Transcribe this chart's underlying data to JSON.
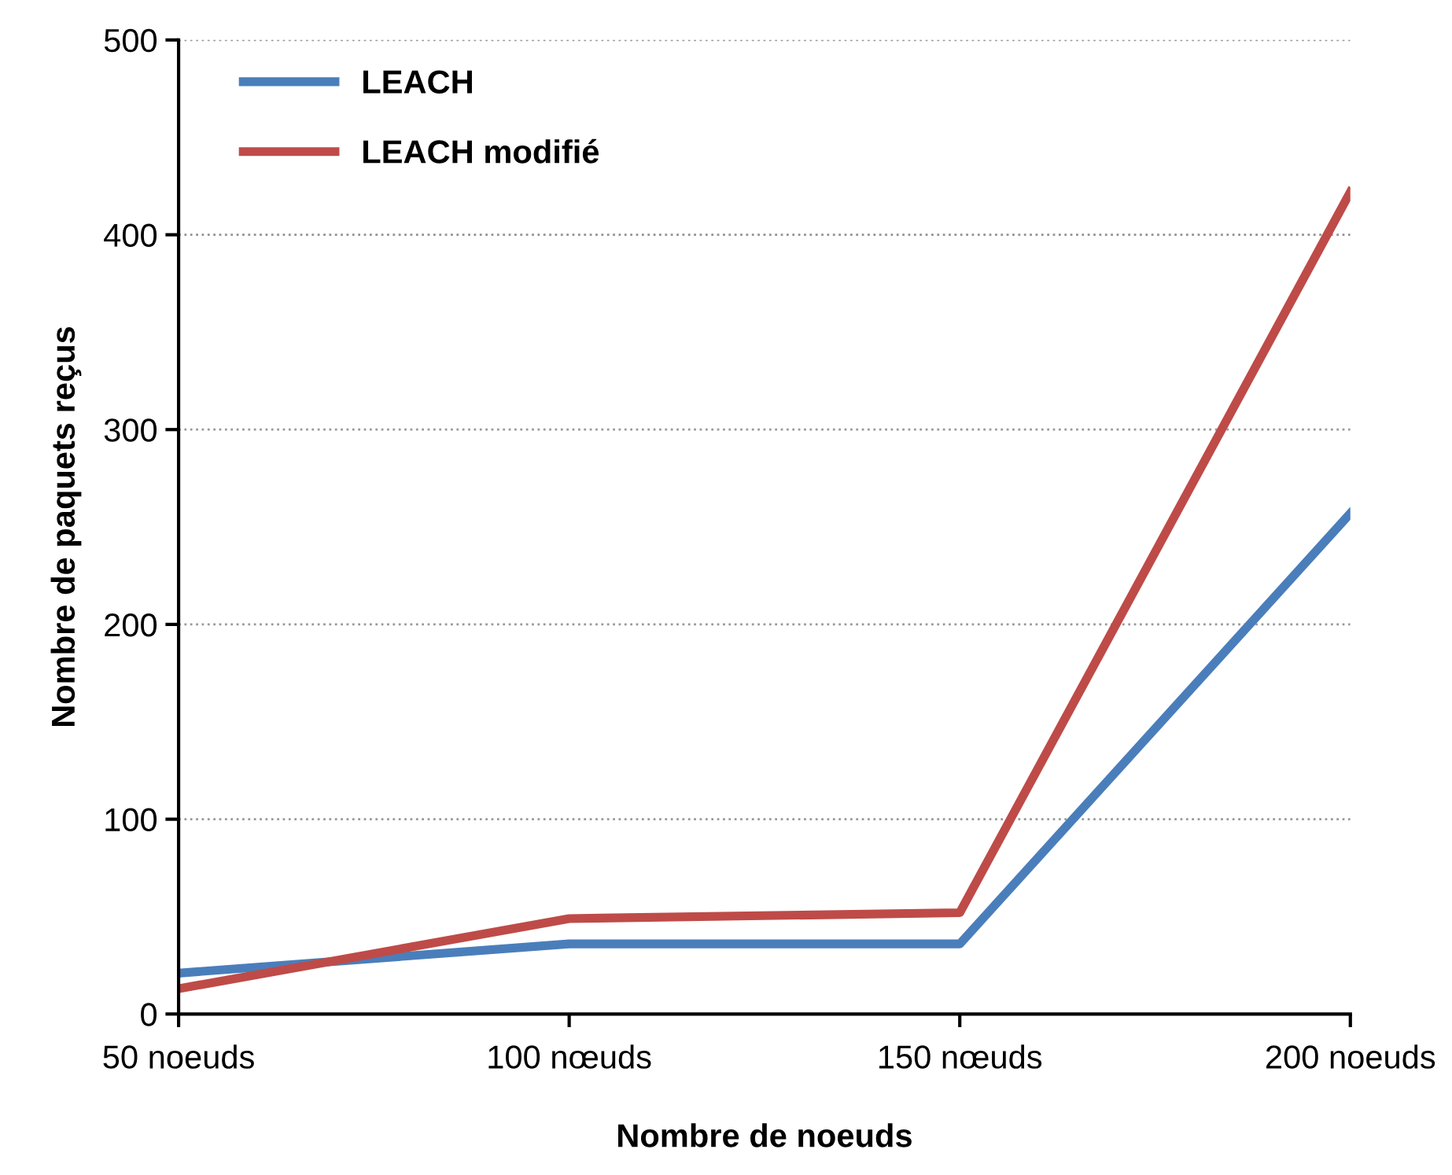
{
  "chart_data": {
    "type": "line",
    "xlabel": "Nombre de noeuds",
    "ylabel": "Nombre de paquets reçus",
    "categories": [
      "50 noeuds",
      "100 nœuds",
      "150 nœuds",
      "200 noeuds"
    ],
    "series": [
      {
        "name": "LEACH",
        "color": "#4a7ebb",
        "values": [
          21,
          36,
          36,
          257
        ]
      },
      {
        "name": "LEACH modifié",
        "color": "#be4b48",
        "values": [
          13,
          49,
          52,
          422
        ]
      }
    ],
    "ylim": [
      0,
      500
    ],
    "yticks": [
      0,
      100,
      200,
      300,
      400,
      500
    ],
    "grid": "y",
    "legend": "top left",
    "marker": "none",
    "line_style": "solid"
  }
}
